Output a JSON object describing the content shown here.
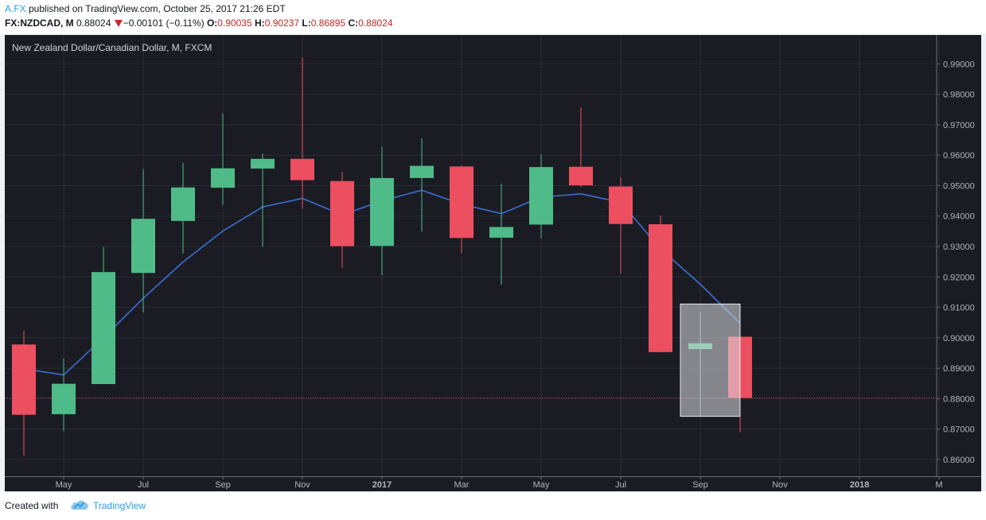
{
  "header": {
    "author": "A.FX",
    "published": " published on TradingView.com, October 25, 2017 21:26 EDT",
    "symbol": "FX:NZDCAD, M",
    "last": "0.88024",
    "change": "−0.00101 (−0.11%)",
    "o_label": "O:",
    "o_value": "0.90035",
    "h_label": "H:",
    "h_value": "0.90237",
    "l_label": "L:",
    "l_value": "0.86895",
    "c_label": "C:",
    "c_value": "0.88024"
  },
  "footer": {
    "created_with": "Created with",
    "brand": "TradingView"
  },
  "colors": {
    "up": "#4fbb88",
    "down": "#ec4f60",
    "background": "#1b1c23",
    "ma": "#3a6fd4",
    "last_price_line": "#d0465a"
  },
  "chart_data": {
    "type": "candlestick",
    "title": "New Zealand Dollar/Canadian Dollar, M, FXCM",
    "y_ticks": [
      "0.86000",
      "0.87000",
      "0.88000",
      "0.89000",
      "0.90000",
      "0.91000",
      "0.92000",
      "0.93000",
      "0.94000",
      "0.95000",
      "0.96000",
      "0.97000",
      "0.98000",
      "0.99000"
    ],
    "ylim": [
      0.8545,
      0.9995
    ],
    "x_ticks": [
      {
        "label": "May",
        "index": 1
      },
      {
        "label": "Jul",
        "index": 3
      },
      {
        "label": "Sep",
        "index": 5
      },
      {
        "label": "Nov",
        "index": 7
      },
      {
        "label": "2017",
        "index": 9,
        "bold": true
      },
      {
        "label": "Mar",
        "index": 11
      },
      {
        "label": "May",
        "index": 13
      },
      {
        "label": "Jul",
        "index": 15
      },
      {
        "label": "Sep",
        "index": 17
      },
      {
        "label": "Nov",
        "index": 19
      },
      {
        "label": "2018",
        "index": 21,
        "bold": true
      },
      {
        "label": "M",
        "index": 23
      }
    ],
    "candles": [
      {
        "date": "2016-04",
        "open": 0.8978,
        "high": 0.9022,
        "low": 0.8613,
        "close": 0.8747
      },
      {
        "date": "2016-05",
        "open": 0.8749,
        "high": 0.8932,
        "low": 0.8693,
        "close": 0.8849
      },
      {
        "date": "2016-06",
        "open": 0.8848,
        "high": 0.9298,
        "low": 0.8848,
        "close": 0.9216
      },
      {
        "date": "2016-07",
        "open": 0.9213,
        "high": 0.9555,
        "low": 0.9083,
        "close": 0.9391
      },
      {
        "date": "2016-08",
        "open": 0.9384,
        "high": 0.9575,
        "low": 0.9277,
        "close": 0.9494
      },
      {
        "date": "2016-09",
        "open": 0.9493,
        "high": 0.9737,
        "low": 0.9437,
        "close": 0.9557
      },
      {
        "date": "2016-10",
        "open": 0.9556,
        "high": 0.9605,
        "low": 0.9299,
        "close": 0.9588
      },
      {
        "date": "2016-11",
        "open": 0.9588,
        "high": 0.9922,
        "low": 0.9424,
        "close": 0.9518
      },
      {
        "date": "2016-12",
        "open": 0.9515,
        "high": 0.9545,
        "low": 0.9231,
        "close": 0.9301
      },
      {
        "date": "2017-01",
        "open": 0.9302,
        "high": 0.9628,
        "low": 0.9205,
        "close": 0.9525
      },
      {
        "date": "2017-02",
        "open": 0.9525,
        "high": 0.9656,
        "low": 0.9349,
        "close": 0.9565
      },
      {
        "date": "2017-03",
        "open": 0.9563,
        "high": 0.9566,
        "low": 0.9278,
        "close": 0.9328
      },
      {
        "date": "2017-04",
        "open": 0.9329,
        "high": 0.9506,
        "low": 0.9174,
        "close": 0.9364
      },
      {
        "date": "2017-05",
        "open": 0.9372,
        "high": 0.9603,
        "low": 0.9327,
        "close": 0.9561
      },
      {
        "date": "2017-06",
        "open": 0.9562,
        "high": 0.9757,
        "low": 0.9496,
        "close": 0.9501
      },
      {
        "date": "2017-07",
        "open": 0.9497,
        "high": 0.9528,
        "low": 0.9211,
        "close": 0.9374
      },
      {
        "date": "2017-08",
        "open": 0.9373,
        "high": 0.9402,
        "low": 0.8953,
        "close": 0.8953
      },
      {
        "date": "2017-09",
        "open": 0.8963,
        "high": 0.9084,
        "low": 0.8744,
        "close": 0.8982
      },
      {
        "date": "2017-10",
        "open": 0.90035,
        "high": 0.90237,
        "low": 0.86895,
        "close": 0.88024
      }
    ],
    "moving_average": [
      0.8898,
      0.8878,
      0.9,
      0.913,
      0.9249,
      0.9351,
      0.943,
      0.9458,
      0.9404,
      0.945,
      0.9485,
      0.9439,
      0.9408,
      0.9462,
      0.9473,
      0.9445,
      0.9292,
      0.9176,
      0.9048
    ],
    "last_price": 0.88024,
    "highlight_box": {
      "from_index": 16.5,
      "to_index": 18.0,
      "top": 0.9111,
      "bottom": 0.8742
    }
  }
}
